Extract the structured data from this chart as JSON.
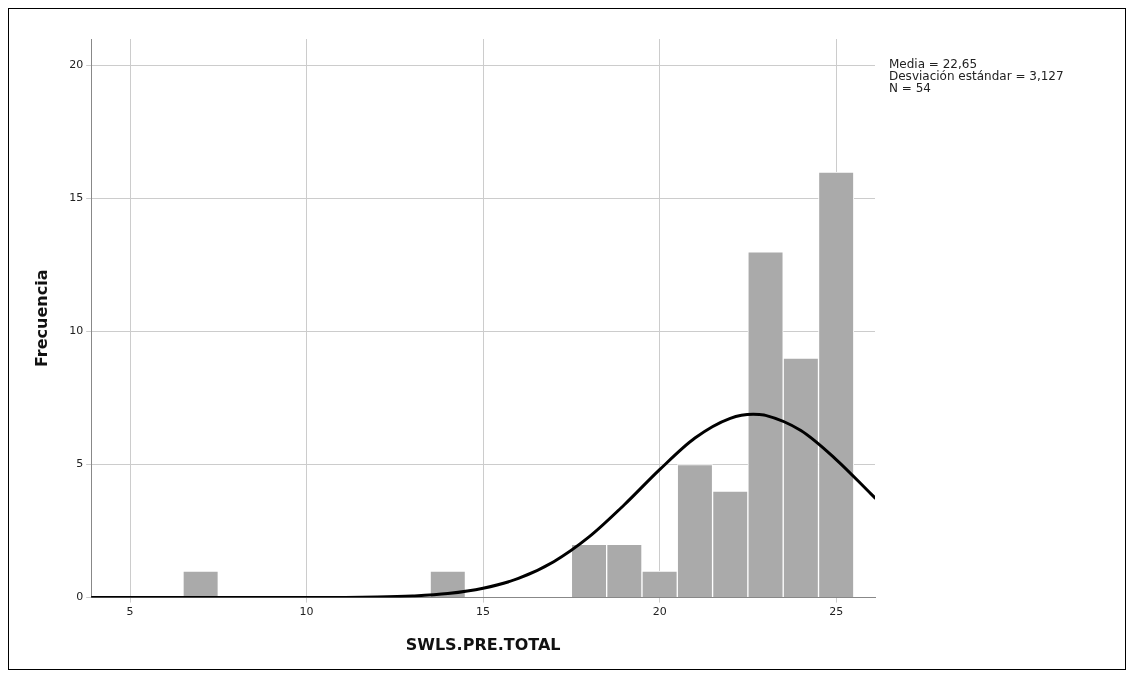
{
  "chart_data": {
    "type": "histogram",
    "xlabel": "SWLS.PRE.TOTAL",
    "ylabel": "Frecuencia",
    "bins": [
      6.5,
      7.5,
      8.5,
      9.5,
      10.5,
      11.5,
      12.5,
      13.5,
      14.5,
      15.5,
      16.5,
      17.5,
      18.5,
      19.5,
      20.5,
      21.5,
      22.5,
      23.5,
      24.5,
      25.5
    ],
    "values": [
      1,
      0,
      0,
      0,
      0,
      0,
      0,
      1,
      0,
      0,
      0,
      2,
      2,
      1,
      5,
      4,
      13,
      9,
      16
    ],
    "color": "#aaaaaa",
    "series": [
      {
        "type": "line",
        "color": "#000000",
        "x": [
          3.9,
          8,
          10,
          12,
          13,
          14,
          15,
          16,
          17,
          18,
          19,
          20,
          21,
          22,
          22.65,
          23,
          24,
          25,
          26,
          26.1
        ],
        "values": [
          0,
          0,
          0,
          0.02,
          0.06,
          0.15,
          0.35,
          0.72,
          1.35,
          2.28,
          3.49,
          4.81,
          6.0,
          6.74,
          6.89,
          6.85,
          6.28,
          5.19,
          3.88,
          3.75
        ]
      }
    ],
    "xlim": [
      3.9,
      26.1
    ],
    "ylim": [
      0,
      21
    ],
    "xticks": [
      5,
      10,
      15,
      20,
      25
    ],
    "yticks": [
      0,
      5,
      10,
      15,
      20
    ],
    "grid": true,
    "legend": false,
    "marker": "none",
    "line_style": "solid",
    "annotations": [
      "Media = 22,65",
      "Desviación estándar = 3,127",
      "N = 54"
    ]
  }
}
